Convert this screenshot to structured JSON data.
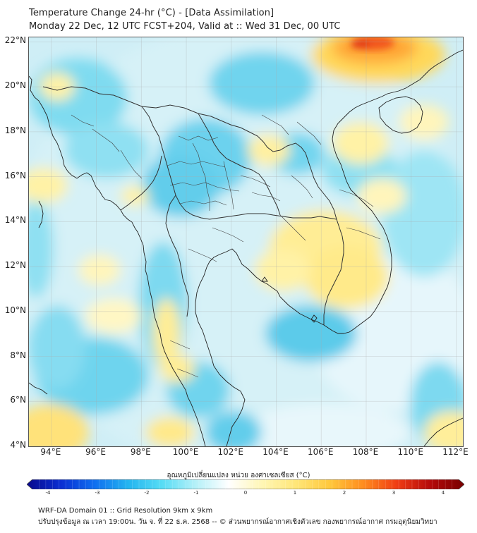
{
  "title": {
    "line1": "Temperature Change 24-hr (°C) - [Data Assimilation]",
    "line2": "Monday 22 Dec, 12 UTC FCST+204, Valid at :: Wed 31 Dec, 00 UTC"
  },
  "map": {
    "lat_labels": [
      "22°N",
      "20°N",
      "18°N",
      "16°N",
      "14°N",
      "12°N",
      "10°N",
      "8°N",
      "6°N",
      "4°N"
    ],
    "lon_labels": [
      "94°E",
      "96°E",
      "98°E",
      "100°E",
      "102°E",
      "104°E",
      "106°E",
      "108°E",
      "110°E",
      "112°E"
    ],
    "lat_range": [
      4,
      22.2
    ],
    "lon_range": [
      93,
      112.3
    ],
    "background_color": "#cfeef6",
    "grid": true
  },
  "colorbar": {
    "label": "อุณหภูมิเปลี่ยนแปลง หน่วย องศาเซลเซียส (°C)",
    "ticks": [
      "-4",
      "-3",
      "-2",
      "-1",
      "0",
      "1",
      "2",
      "3",
      "4"
    ],
    "min": -4,
    "max": 4,
    "colors": [
      "#0a0a8c",
      "#0a2ed2",
      "#0f6ef0",
      "#23b4f0",
      "#55dcf5",
      "#b4f0f8",
      "#ffffff",
      "#fff6b4",
      "#ffe678",
      "#ffc83c",
      "#ff8c1e",
      "#f03c14",
      "#b40a0a",
      "#780000"
    ]
  },
  "footer": {
    "line1": "WRF-DA Domain 01 :: Grid Resolution 9km x 9km",
    "line2": "ปรับปรุงข้อมูล ณ เวลา 19:00น. วัน จ. ที่ 22 ธ.ค. 2568 -- © ส่วนพยากรณ์อากาศเชิงตัวเลข กองพยากรณ์อากาศ กรมอุตุนิยมวิทยา"
  }
}
